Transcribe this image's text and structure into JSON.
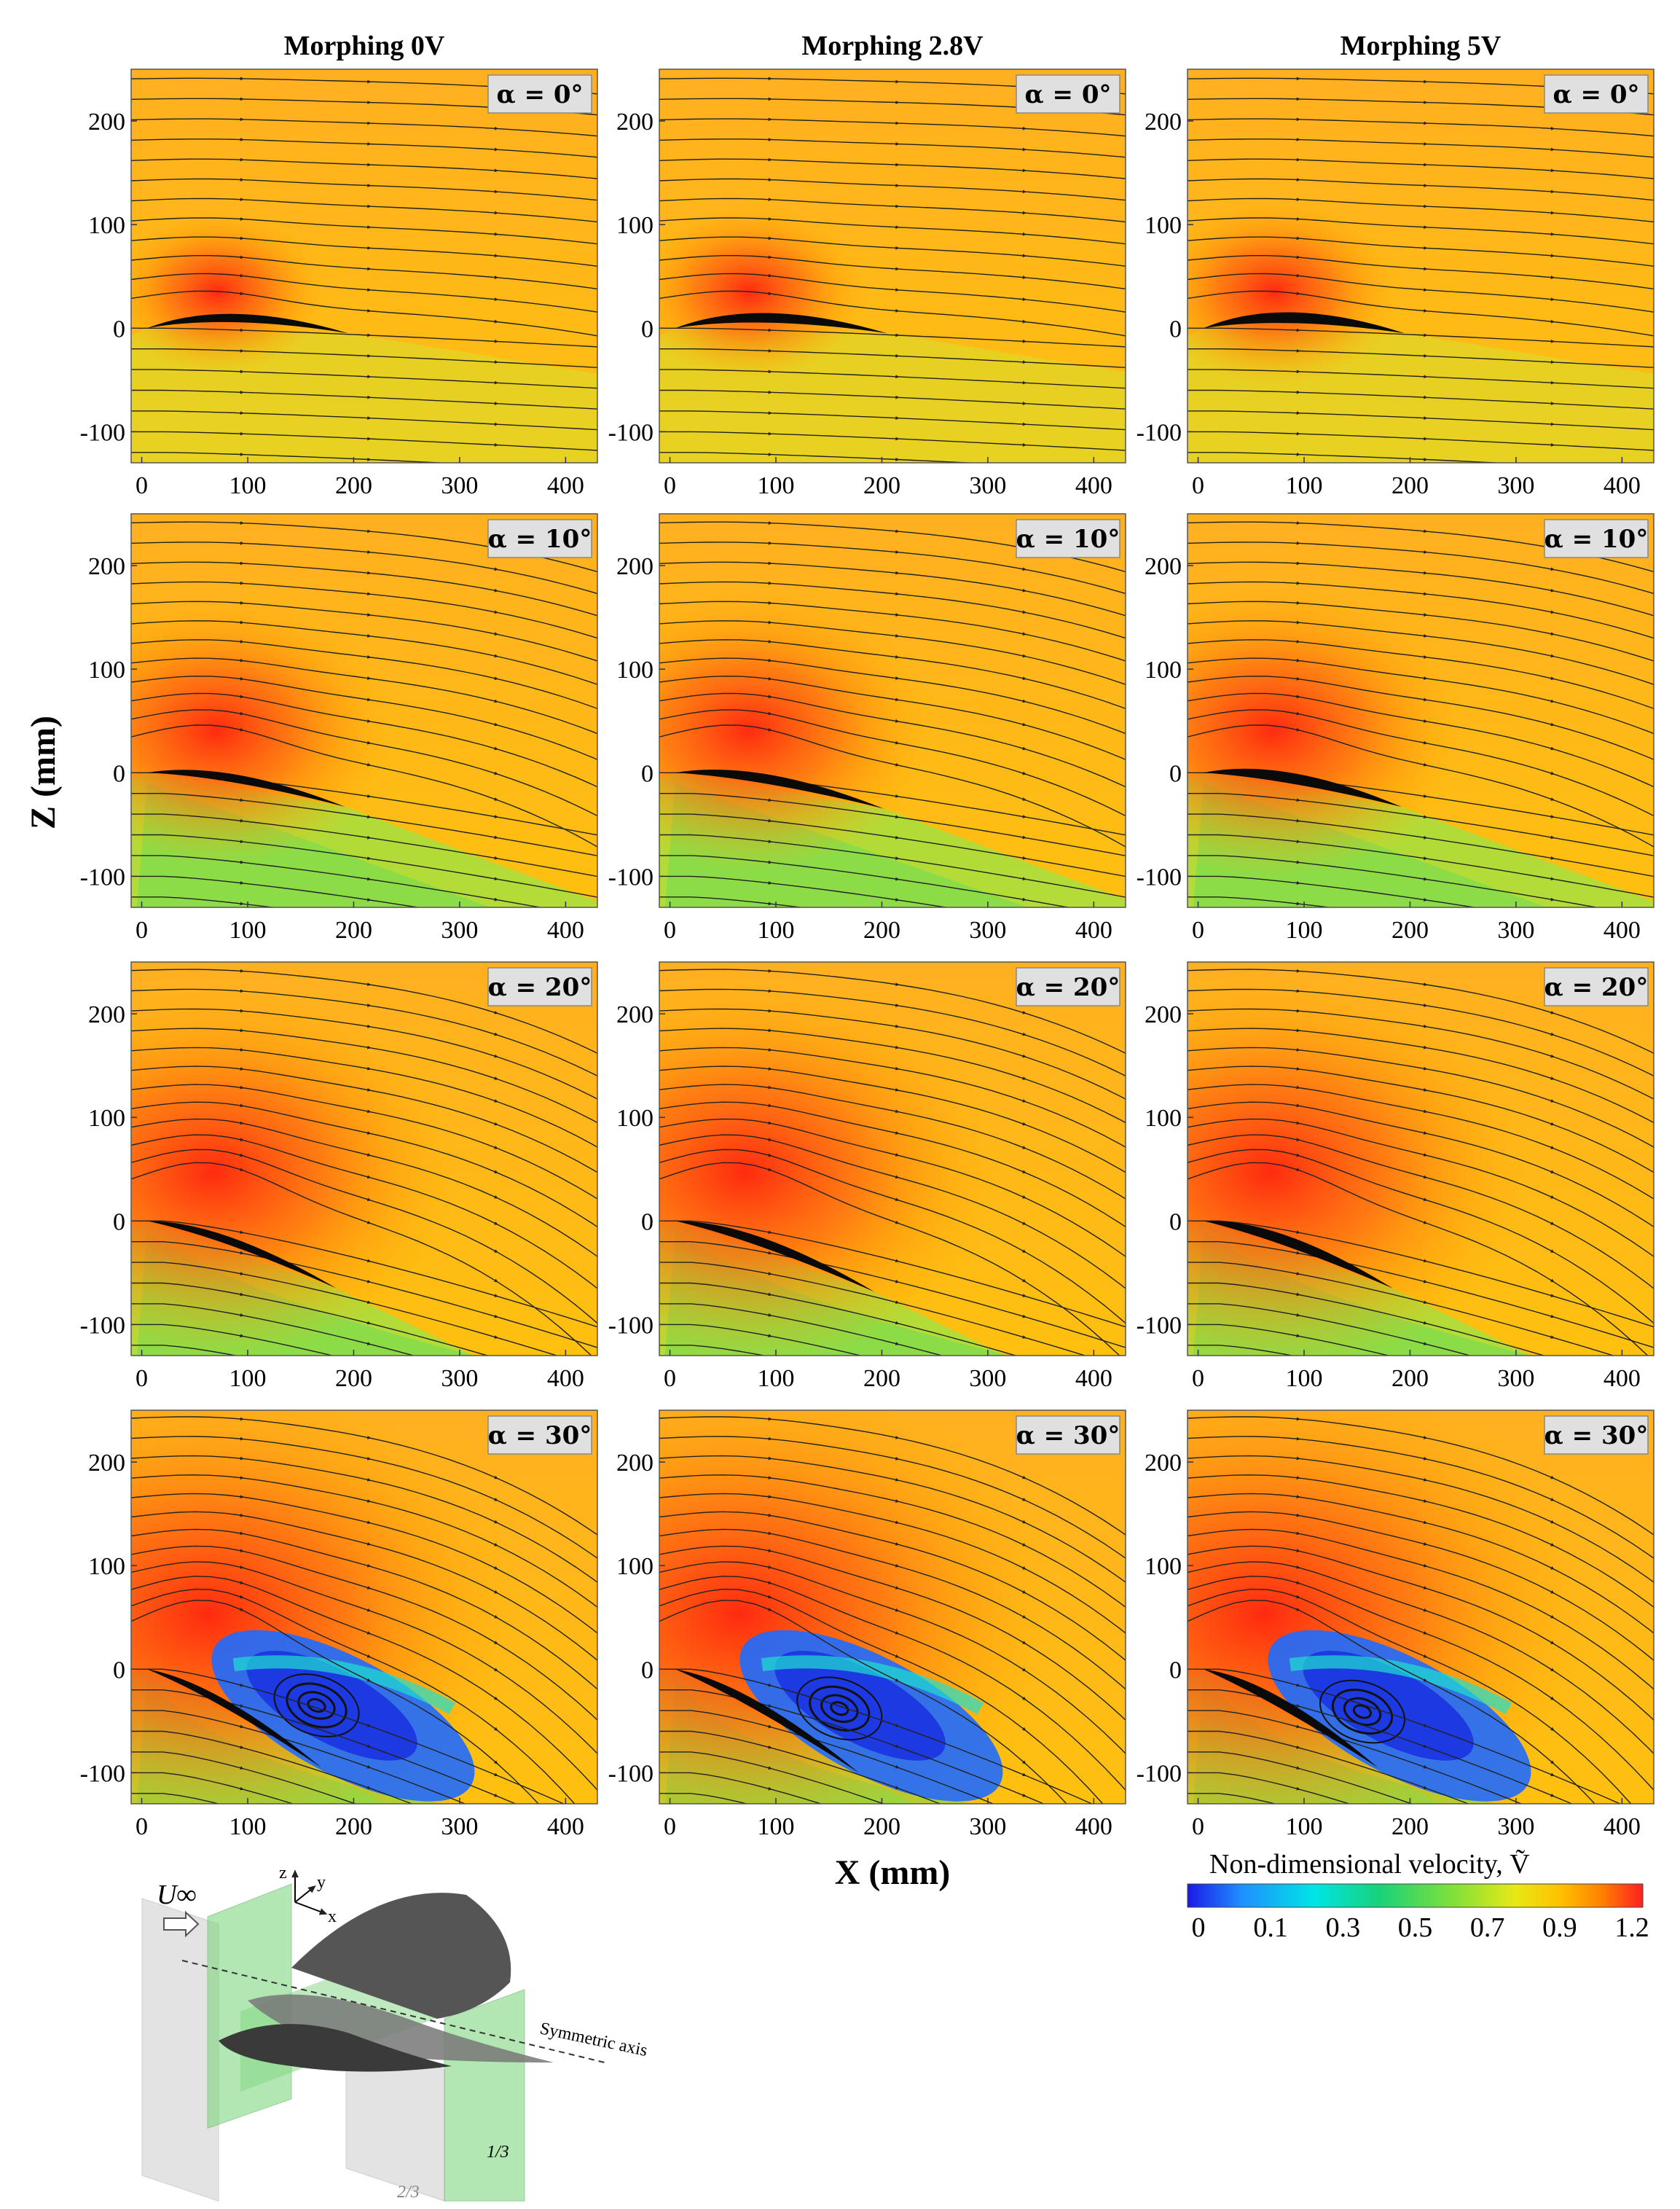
{
  "figure": {
    "column_titles": [
      "Morphing 0V",
      "Morphing 2.8V",
      "Morphing 5V"
    ],
    "x_axis_label": "X (mm)",
    "y_axis_label": "Z (mm)",
    "x_ticks": [
      "0",
      "100",
      "200",
      "300",
      "400"
    ],
    "y_ticks": [
      "200",
      "100",
      "0",
      "-100"
    ],
    "angle_labels": [
      "α = 0°",
      "α = 10°",
      "α = 20°",
      "α = 30°"
    ],
    "colorbar": {
      "title": "Non-dimensional velocity, Ṽ",
      "tick_labels": [
        "0",
        "0.1",
        "0.3",
        "0.5",
        "0.7",
        "0.9",
        "1.2"
      ],
      "colors": [
        "#1a1ae6",
        "#1e90ff",
        "#00e5e5",
        "#18d27a",
        "#7fe03a",
        "#e8e815",
        "#ffc000",
        "#ff8000",
        "#ff2020"
      ]
    },
    "schematic": {
      "freestream_label": "U∞",
      "axes_labels": [
        "z",
        "y",
        "x"
      ],
      "symmetric_axis_label": "Symmetric axis",
      "plane_labels": [
        "1/3",
        "2/3"
      ]
    }
  },
  "chart_data": {
    "type": "heatmap",
    "description_free": true,
    "x_range_mm": [
      -10,
      430
    ],
    "z_range_mm": [
      -130,
      250
    ],
    "columns": [
      "Morphing 0V",
      "Morphing 2.8V",
      "Morphing 5V"
    ],
    "rows_alpha_deg": [
      0,
      10,
      20,
      30
    ],
    "colorbar_range": [
      0,
      1.2
    ],
    "freestream_value": 0.9,
    "peak_value": 1.2,
    "separation_region_alpha_deg": 30,
    "wing_chord_mm": [
      190,
      200,
      190
    ]
  }
}
